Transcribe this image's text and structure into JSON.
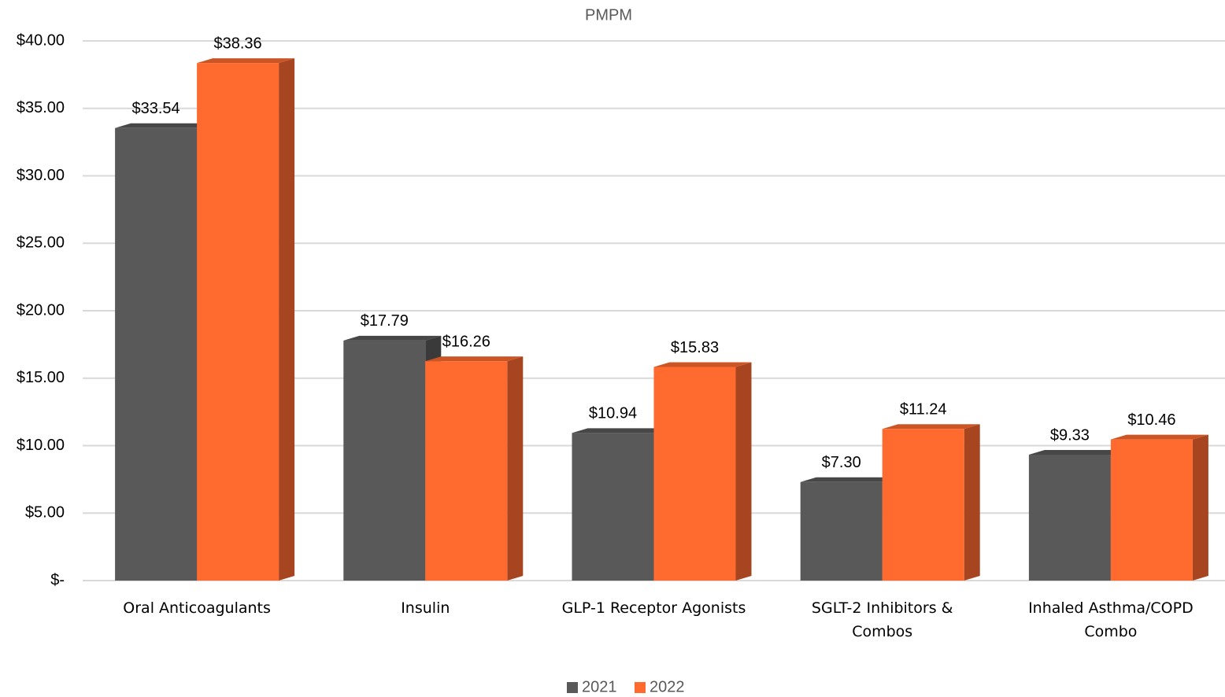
{
  "chart_data": {
    "type": "bar",
    "title": "PMPM",
    "categories": [
      "Oral Anticoagulants",
      "Insulin",
      "GLP-1 Receptor Agonists",
      "SGLT-2 Inhibitors & Combos",
      "Inhaled Asthma/COPD Combo"
    ],
    "series": [
      {
        "name": "2021",
        "color": "#595959",
        "values": [
          33.54,
          17.79,
          10.94,
          7.3,
          9.33
        ],
        "value_labels": [
          "$33.54",
          "$17.79",
          "$10.94",
          "$7.30",
          "$9.33"
        ]
      },
      {
        "name": "2022",
        "color": "#ff6a2f",
        "values": [
          38.36,
          16.26,
          15.83,
          11.24,
          10.46
        ],
        "value_labels": [
          "$38.36",
          "$16.26",
          "$15.83",
          "$11.24",
          "$10.46"
        ]
      }
    ],
    "ylim": [
      0,
      40
    ],
    "yticks": [
      {
        "value": 0,
        "label": "$-"
      },
      {
        "value": 5,
        "label": "$5.00"
      },
      {
        "value": 10,
        "label": "$10.00"
      },
      {
        "value": 15,
        "label": "$15.00"
      },
      {
        "value": 20,
        "label": "$20.00"
      },
      {
        "value": 25,
        "label": "$25.00"
      },
      {
        "value": 30,
        "label": "$30.00"
      },
      {
        "value": 35,
        "label": "$35.00"
      },
      {
        "value": 40,
        "label": "$40.00"
      }
    ],
    "grid": true,
    "legend": "bottom"
  }
}
